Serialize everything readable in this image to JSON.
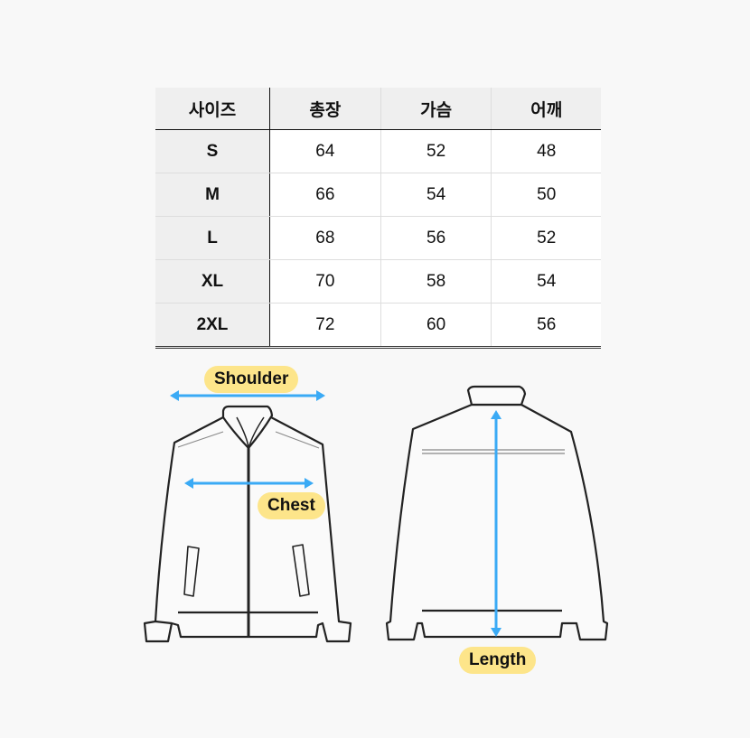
{
  "table": {
    "headers": [
      "사이즈",
      "총장",
      "가슴",
      "어깨"
    ],
    "rows": [
      {
        "size": "S",
        "length": "64",
        "chest": "52",
        "shoulder": "48"
      },
      {
        "size": "M",
        "length": "66",
        "chest": "54",
        "shoulder": "50"
      },
      {
        "size": "L",
        "length": "68",
        "chest": "56",
        "shoulder": "52"
      },
      {
        "size": "XL",
        "length": "70",
        "chest": "58",
        "shoulder": "54"
      },
      {
        "size": "2XL",
        "length": "72",
        "chest": "60",
        "shoulder": "56"
      }
    ]
  },
  "diagram": {
    "shoulder_label": "Shoulder",
    "chest_label": "Chest",
    "length_label": "Length",
    "arrow_color": "#3aaaf5",
    "label_color": "#fde58a"
  }
}
